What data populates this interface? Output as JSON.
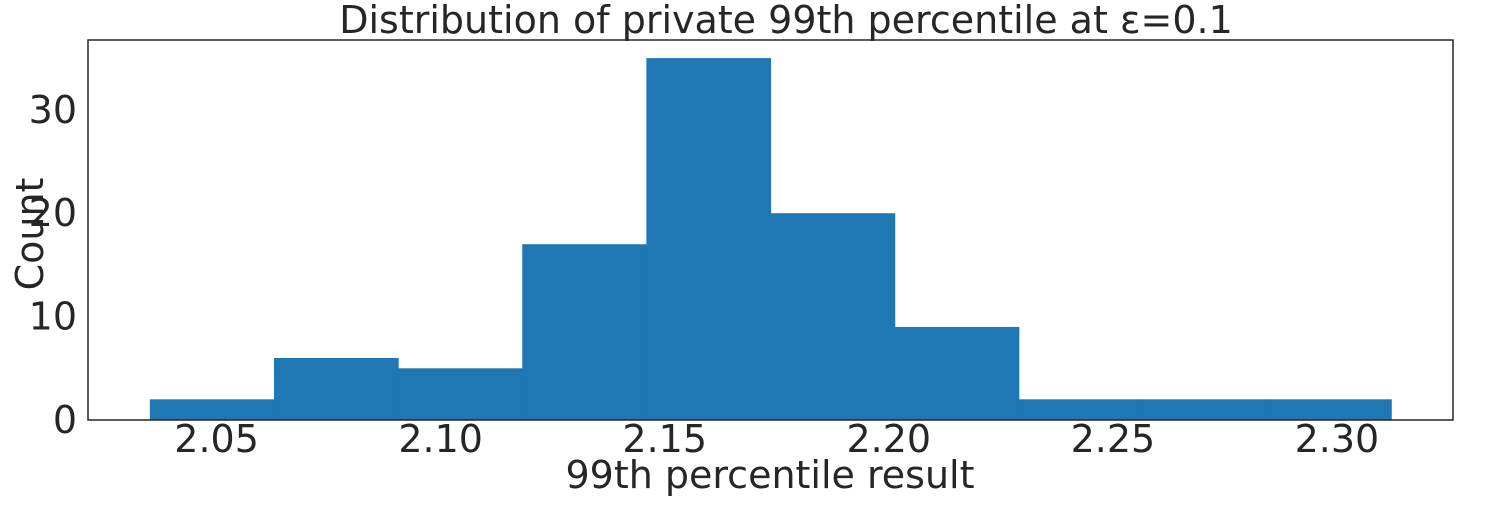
{
  "chart_data": {
    "type": "bar",
    "title": "Distribution of private 99th percentile at ε=0.1",
    "xlabel": "99th percentile result",
    "ylabel": "Count",
    "bins": [
      {
        "start": 2.0351,
        "end": 2.0628,
        "count": 2
      },
      {
        "start": 2.0628,
        "end": 2.0905,
        "count": 6
      },
      {
        "start": 2.0905,
        "end": 2.1182,
        "count": 5
      },
      {
        "start": 2.1182,
        "end": 2.1459,
        "count": 17
      },
      {
        "start": 2.1459,
        "end": 2.1736,
        "count": 35
      },
      {
        "start": 2.1736,
        "end": 2.2013,
        "count": 20
      },
      {
        "start": 2.2013,
        "end": 2.229,
        "count": 9
      },
      {
        "start": 2.229,
        "end": 2.2567,
        "count": 2
      },
      {
        "start": 2.2567,
        "end": 2.2844,
        "count": 2
      },
      {
        "start": 2.2844,
        "end": 2.3121,
        "count": 2
      }
    ],
    "xticks": [
      "2.05",
      "2.10",
      "2.15",
      "2.20",
      "2.25",
      "2.30"
    ],
    "yticks": [
      "0",
      "10",
      "20",
      "30"
    ],
    "xlim": [
      2.0213,
      2.3259
    ],
    "ylim": [
      0,
      36.75
    ],
    "grid": false,
    "bar_color": "#1f77b4"
  }
}
